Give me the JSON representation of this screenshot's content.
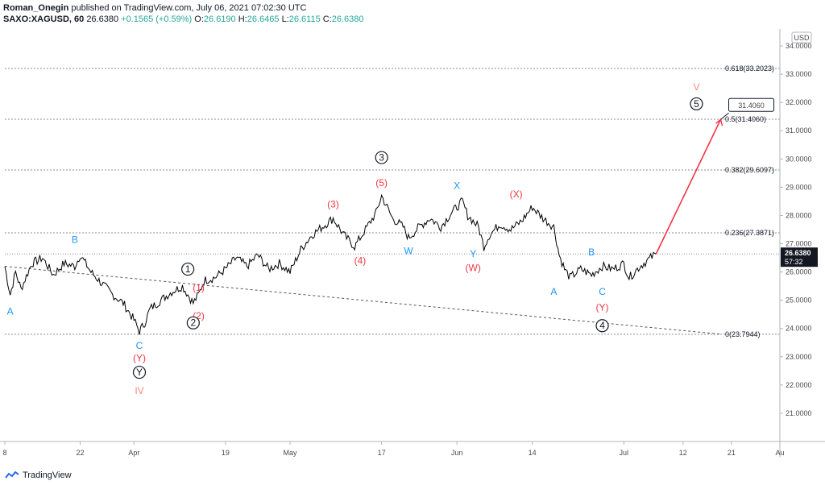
{
  "header": {
    "author": "Roman_Onegin",
    "rest": " published on TradingView.com, July 06, 2021 07:02:30 UTC"
  },
  "quote": {
    "symbol": "SAXO:XAGUSD, 60",
    "price": "26.6380",
    "change": "+0.1565 (+0.59%)",
    "o_label": "O:",
    "o": "26.6190",
    "h_label": "H:",
    "h": "26.6465",
    "l_label": "L:",
    "l": "26.6115",
    "c_label": "C:",
    "c": "26.6380"
  },
  "footer": {
    "brand": "TradingView"
  },
  "colors": {
    "blue": "#2196f3",
    "red": "#f23645",
    "salmon": "#f7867a",
    "black": "#131722",
    "up": "#26a69a"
  },
  "chart_data": {
    "type": "line",
    "title": "SAXO:XAGUSD, 60",
    "currency": "USD",
    "ylim": [
      20.0,
      34.6
    ],
    "y_ticks": [
      "34.0000",
      "33.0000",
      "32.0000",
      "31.0000",
      "30.0000",
      "29.0000",
      "28.0000",
      "27.0000",
      "26.0000",
      "25.0000",
      "24.0000",
      "23.0000",
      "22.0000",
      "21.0000"
    ],
    "y_tick_values": [
      34,
      33,
      32,
      31,
      30,
      29,
      28,
      27,
      26,
      25,
      24,
      23,
      22,
      21
    ],
    "x_ticks": [
      "8",
      "22",
      "Apr",
      "19",
      "May",
      "17",
      "Jun",
      "14",
      "Jul",
      "12",
      "21",
      "Au"
    ],
    "x_tick_days": [
      0,
      14,
      24,
      41,
      53,
      70,
      84,
      98,
      115,
      126,
      135,
      144
    ],
    "x_range_days": [
      0,
      144
    ],
    "last_price": "26.6380",
    "countdown": "57:32",
    "fib_levels": [
      {
        "label": "0.618(33.2023)",
        "value": 33.2023
      },
      {
        "label": "0.5(31.4060)",
        "value": 31.406
      },
      {
        "label": "0.382(29.6097)",
        "value": 29.6097
      },
      {
        "label": "0.236(27.3871)",
        "value": 27.3871
      },
      {
        "label": "0(23.7944)",
        "value": 23.7944
      }
    ],
    "target_label": "31.4060",
    "price_path": [
      [
        0,
        26.2
      ],
      [
        1,
        25.2
      ],
      [
        2,
        26.0
      ],
      [
        3,
        25.4
      ],
      [
        5,
        26.3
      ],
      [
        7,
        26.5
      ],
      [
        9,
        25.9
      ],
      [
        11,
        26.3
      ],
      [
        13,
        26.2
      ],
      [
        14,
        26.6
      ],
      [
        16,
        26.0
      ],
      [
        18,
        25.6
      ],
      [
        20,
        25.2
      ],
      [
        22,
        24.9
      ],
      [
        24,
        24.3
      ],
      [
        25,
        23.9
      ],
      [
        26,
        24.2
      ],
      [
        27,
        24.7
      ],
      [
        29,
        25.0
      ],
      [
        31,
        25.3
      ],
      [
        33,
        25.5
      ],
      [
        35,
        24.9
      ],
      [
        36,
        25.2
      ],
      [
        37,
        25.7
      ],
      [
        39,
        25.8
      ],
      [
        41,
        26.1
      ],
      [
        43,
        26.5
      ],
      [
        45,
        26.2
      ],
      [
        47,
        26.6
      ],
      [
        49,
        26.1
      ],
      [
        51,
        26.3
      ],
      [
        53,
        26.0
      ],
      [
        55,
        26.8
      ],
      [
        57,
        27.3
      ],
      [
        59,
        27.6
      ],
      [
        61,
        27.9
      ],
      [
        63,
        27.3
      ],
      [
        65,
        26.9
      ],
      [
        67,
        27.5
      ],
      [
        69,
        28.1
      ],
      [
        70,
        28.7
      ],
      [
        71,
        28.3
      ],
      [
        72,
        27.9
      ],
      [
        74,
        27.6
      ],
      [
        75,
        27.2
      ],
      [
        77,
        27.6
      ],
      [
        79,
        27.9
      ],
      [
        81,
        27.6
      ],
      [
        83,
        28.1
      ],
      [
        85,
        28.5
      ],
      [
        86,
        28.0
      ],
      [
        88,
        27.6
      ],
      [
        89,
        26.9
      ],
      [
        90,
        27.3
      ],
      [
        92,
        27.7
      ],
      [
        94,
        27.5
      ],
      [
        96,
        27.8
      ],
      [
        98,
        28.3
      ],
      [
        100,
        27.9
      ],
      [
        102,
        27.6
      ],
      [
        103,
        26.6
      ],
      [
        104,
        26.1
      ],
      [
        105,
        25.8
      ],
      [
        107,
        26.1
      ],
      [
        109,
        25.9
      ],
      [
        111,
        26.2
      ],
      [
        113,
        26.1
      ],
      [
        115,
        26.3
      ],
      [
        116,
        25.8
      ],
      [
        118,
        26.2
      ],
      [
        120,
        26.5
      ],
      [
        121,
        26.64
      ]
    ],
    "projection": [
      [
        121,
        26.64
      ],
      [
        133,
        31.4
      ]
    ],
    "trendline": [
      [
        0,
        26.2
      ],
      [
        133,
        23.8
      ]
    ],
    "wave_labels": [
      {
        "text": "A",
        "day": 1,
        "price": 24.6,
        "color": "blue"
      },
      {
        "text": "B",
        "day": 13,
        "price": 27.15,
        "color": "blue"
      },
      {
        "text": "C",
        "day": 25,
        "price": 23.4,
        "color": "blue"
      },
      {
        "text": "(Y)",
        "day": 25,
        "price": 22.95,
        "color": "red"
      },
      {
        "text": "Y",
        "day": 25,
        "price": 22.45,
        "color": "black",
        "circled": true
      },
      {
        "text": "IV",
        "day": 25,
        "price": 21.8,
        "color": "salmon"
      },
      {
        "text": "1",
        "day": 34,
        "price": 26.1,
        "color": "black",
        "circled": true
      },
      {
        "text": "(1)",
        "day": 36,
        "price": 25.45,
        "color": "red"
      },
      {
        "text": "(2)",
        "day": 36,
        "price": 24.45,
        "color": "red"
      },
      {
        "text": "2",
        "day": 35,
        "price": 24.2,
        "color": "black",
        "circled": true
      },
      {
        "text": "(3)",
        "day": 61,
        "price": 28.4,
        "color": "red"
      },
      {
        "text": "(4)",
        "day": 66,
        "price": 26.4,
        "color": "red"
      },
      {
        "text": "3",
        "day": 70,
        "price": 30.05,
        "color": "black",
        "circled": true
      },
      {
        "text": "(5)",
        "day": 70,
        "price": 29.15,
        "color": "red"
      },
      {
        "text": "W",
        "day": 75,
        "price": 26.75,
        "color": "blue"
      },
      {
        "text": "X",
        "day": 84,
        "price": 29.05,
        "color": "blue"
      },
      {
        "text": "Y",
        "day": 87,
        "price": 26.65,
        "color": "blue"
      },
      {
        "text": "(W)",
        "day": 87,
        "price": 26.15,
        "color": "red"
      },
      {
        "text": "(X)",
        "day": 95,
        "price": 28.75,
        "color": "red"
      },
      {
        "text": "A",
        "day": 102,
        "price": 25.3,
        "color": "blue"
      },
      {
        "text": "B",
        "day": 109,
        "price": 26.7,
        "color": "blue"
      },
      {
        "text": "C",
        "day": 111,
        "price": 25.3,
        "color": "blue"
      },
      {
        "text": "(Y)",
        "day": 111,
        "price": 24.75,
        "color": "red"
      },
      {
        "text": "4",
        "day": 111,
        "price": 24.1,
        "color": "black",
        "circled": true
      },
      {
        "text": "5",
        "day": 128.5,
        "price": 31.95,
        "color": "black",
        "circled": true
      },
      {
        "text": "V",
        "day": 128.5,
        "price": 32.55,
        "color": "salmon"
      }
    ]
  }
}
